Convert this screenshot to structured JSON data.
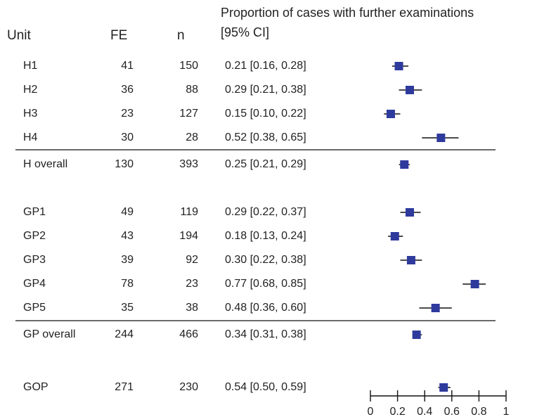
{
  "headers": {
    "unit": "Unit",
    "fe": "FE",
    "n": "n",
    "proportion_line1": "Proportion of cases with further examinations",
    "proportion_line2": "[95% CI]"
  },
  "rows": [
    {
      "unit": "H1",
      "fe": "41",
      "n": "150",
      "ci_text": "0.21 [0.16, 0.28]"
    },
    {
      "unit": "H2",
      "fe": "36",
      "n": "88",
      "ci_text": "0.29 [0.21, 0.38]"
    },
    {
      "unit": "H3",
      "fe": "23",
      "n": "127",
      "ci_text": "0.15 [0.10, 0.22]"
    },
    {
      "unit": "H4",
      "fe": "30",
      "n": "28",
      "ci_text": "0.52 [0.38, 0.65]"
    },
    {
      "unit": "H overall",
      "fe": "130",
      "n": "393",
      "ci_text": "0.25 [0.21, 0.29]"
    },
    {
      "unit": "GP1",
      "fe": "49",
      "n": "119",
      "ci_text": "0.29 [0.22, 0.37]"
    },
    {
      "unit": "GP2",
      "fe": "43",
      "n": "194",
      "ci_text": "0.18 [0.13, 0.24]"
    },
    {
      "unit": "GP3",
      "fe": "39",
      "n": "92",
      "ci_text": "0.30 [0.22, 0.38]"
    },
    {
      "unit": "GP4",
      "fe": "78",
      "n": "23",
      "ci_text": "0.77 [0.68, 0.85]"
    },
    {
      "unit": "GP5",
      "fe": "35",
      "n": "38",
      "ci_text": "0.48 [0.36, 0.60]"
    },
    {
      "unit": "GP overall",
      "fe": "244",
      "n": "466",
      "ci_text": "0.34 [0.31, 0.38]"
    },
    {
      "unit": "GOP",
      "fe": "271",
      "n": "230",
      "ci_text": "0.54 [0.50, 0.59]"
    }
  ],
  "chart_data": {
    "type": "forest",
    "title": "Proportion of cases with further examinations [95% CI]",
    "xlim": [
      0,
      1
    ],
    "xticks": [
      0,
      0.2,
      0.4,
      0.6,
      0.8,
      1
    ],
    "xtick_labels": [
      "0",
      "0.2",
      "0.4",
      "0.6",
      "0.8",
      "1"
    ],
    "marker_color": "#2e3a9c",
    "series": [
      {
        "label": "H1",
        "estimate": 0.21,
        "lower": 0.16,
        "upper": 0.28
      },
      {
        "label": "H2",
        "estimate": 0.29,
        "lower": 0.21,
        "upper": 0.38
      },
      {
        "label": "H3",
        "estimate": 0.15,
        "lower": 0.1,
        "upper": 0.22
      },
      {
        "label": "H4",
        "estimate": 0.52,
        "lower": 0.38,
        "upper": 0.65
      },
      {
        "label": "H overall",
        "estimate": 0.25,
        "lower": 0.21,
        "upper": 0.29
      },
      {
        "label": "GP1",
        "estimate": 0.29,
        "lower": 0.22,
        "upper": 0.37
      },
      {
        "label": "GP2",
        "estimate": 0.18,
        "lower": 0.13,
        "upper": 0.24
      },
      {
        "label": "GP3",
        "estimate": 0.3,
        "lower": 0.22,
        "upper": 0.38
      },
      {
        "label": "GP4",
        "estimate": 0.77,
        "lower": 0.68,
        "upper": 0.85
      },
      {
        "label": "GP5",
        "estimate": 0.48,
        "lower": 0.36,
        "upper": 0.6
      },
      {
        "label": "GP overall",
        "estimate": 0.34,
        "lower": 0.31,
        "upper": 0.38
      },
      {
        "label": "GOP",
        "estimate": 0.54,
        "lower": 0.5,
        "upper": 0.59
      }
    ]
  }
}
